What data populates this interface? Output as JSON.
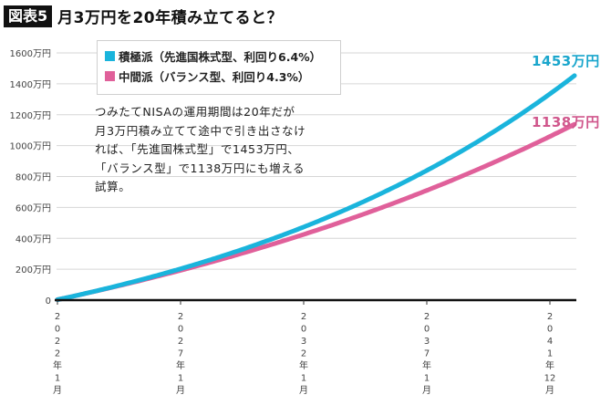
{
  "header": {
    "badge": "図表5",
    "title": "月3万円を20年積み立てると？"
  },
  "legend": [
    {
      "label": "積極派（先進国株式型、利回り6.4%）",
      "color": "#1ab4dc"
    },
    {
      "label": "中間派（バランス型、利回り4.3%）",
      "color": "#e0609a"
    }
  ],
  "note": "つみたてNISAの運用期間は20年だが月3万円積み立てて途中で引き出さなければ、「先進国株式型」で1453万円、「バランス型」で1138万円にも増える試算。",
  "end_labels": {
    "aggressive": "1453万円",
    "balanced": "1138万円"
  },
  "colors": {
    "aggressive": "#1ab4dc",
    "balanced": "#e0609a",
    "grid": "#d6d6d6",
    "axis": "#111111"
  },
  "chart_data": {
    "type": "line",
    "title": "月3万円を20年積み立てると？",
    "xlabel": "",
    "ylabel": "",
    "y_tick_labels": [
      "0",
      "200万円",
      "400万円",
      "600万円",
      "800万円",
      "1000万円",
      "1200万円",
      "1400万円",
      "1600万円"
    ],
    "x_tick_labels": [
      "2022年1月",
      "2027年1月",
      "2032年1月",
      "2037年1月",
      "2041年12月"
    ],
    "ylim": [
      0,
      1600
    ],
    "grid": true,
    "legend_position": "top-left",
    "x": [
      "2022年1月",
      "2027年1月",
      "2032年1月",
      "2037年1月",
      "2041年12月"
    ],
    "series": [
      {
        "name": "積極派（先進国株式型、利回り6.4%）",
        "values": [
          3,
          210,
          500,
          895,
          1453
        ]
      },
      {
        "name": "中間派（バランス型、利回り4.3%）",
        "values": [
          3,
          199,
          445,
          750,
          1138
        ]
      }
    ],
    "annotations": [
      "1453万円",
      "1138万円"
    ]
  }
}
